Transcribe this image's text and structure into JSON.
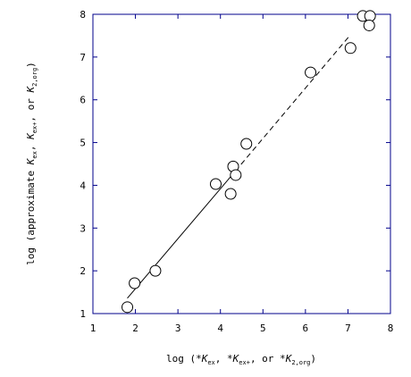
{
  "chart_data": {
    "type": "scatter",
    "xlabel": {
      "prefix": "log (*",
      "k1": "K",
      "s1": "ex",
      "mid1": ", *",
      "k2": "K",
      "s2": "ex+",
      "mid2": ", or *",
      "k3": "K",
      "s3": "2,org",
      "suffix": ")"
    },
    "ylabel": {
      "prefix": "log (approximate ",
      "k1": "K",
      "s1": "ex",
      "mid1": ", ",
      "k2": "K",
      "s2": "ex+",
      "mid2": ", or ",
      "k3": "K",
      "s3": "2,org",
      "suffix": ")"
    },
    "xlim": [
      1,
      8
    ],
    "ylim": [
      1,
      8
    ],
    "xticks": [
      "1",
      "2",
      "3",
      "4",
      "5",
      "6",
      "7",
      "8"
    ],
    "yticks": [
      "1",
      "2",
      "3",
      "4",
      "5",
      "6",
      "7",
      "8"
    ],
    "x": [
      1.81,
      1.98,
      2.47,
      3.89,
      4.24,
      4.3,
      4.36,
      4.61,
      6.12,
      7.06,
      7.35,
      7.52,
      7.5
    ],
    "y": [
      1.15,
      1.71,
      2.0,
      4.03,
      3.8,
      4.44,
      4.24,
      4.97,
      6.64,
      7.21,
      7.96,
      7.96,
      7.74
    ],
    "solid_fit": {
      "x": [
        1.81,
        4.35
      ],
      "y": [
        1.36,
        4.33
      ]
    },
    "dashed_fit": {
      "x": [
        4.35,
        7.05
      ],
      "y": [
        4.33,
        7.51
      ]
    },
    "grid": false,
    "legend": "none"
  }
}
